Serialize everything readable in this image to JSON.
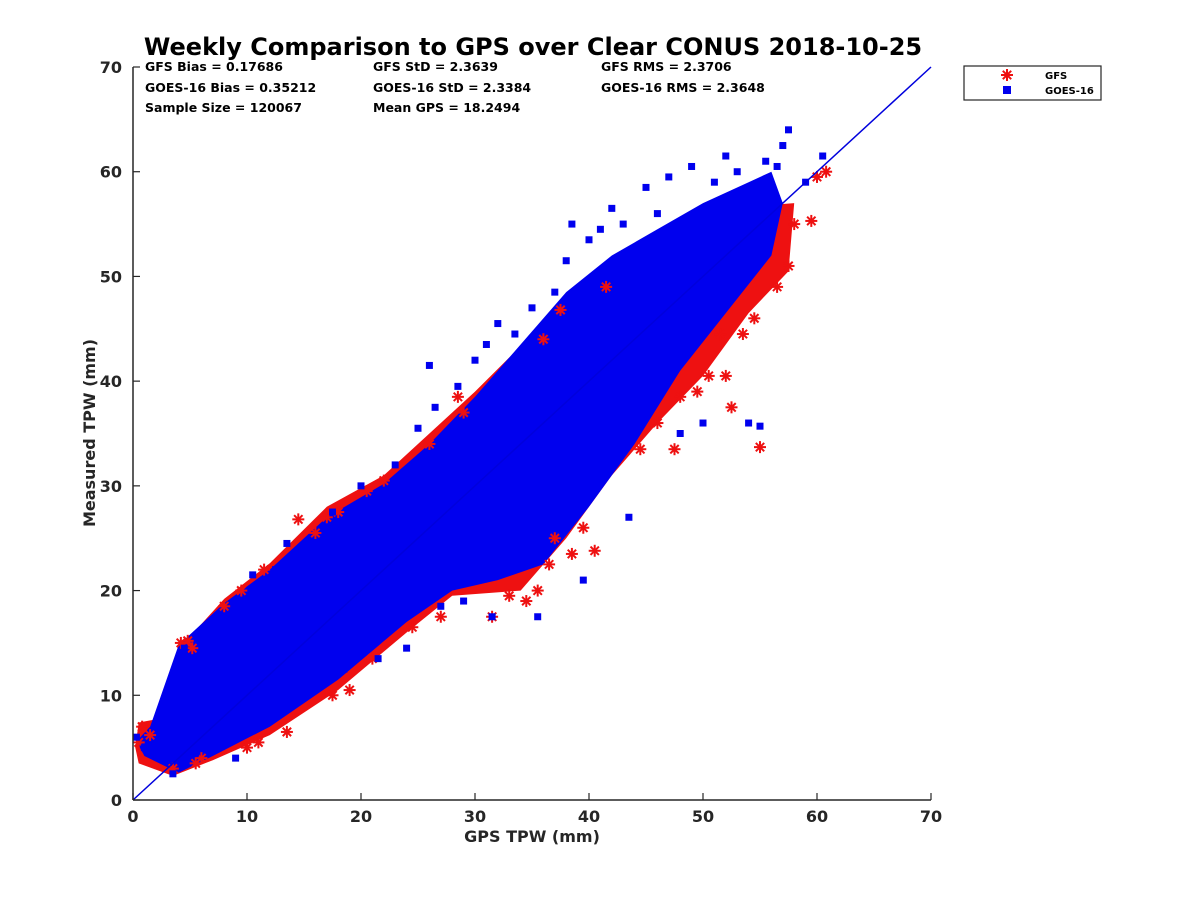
{
  "chart_data": {
    "type": "scatter",
    "title": "Weekly Comparison to GPS over Clear CONUS 2018-10-25",
    "xlabel": "GPS TPW (mm)",
    "ylabel": "Measured TPW (mm)",
    "xlim": [
      0,
      70
    ],
    "ylim": [
      0,
      70
    ],
    "xticks": [
      "0",
      "10",
      "20",
      "30",
      "40",
      "50",
      "60",
      "70"
    ],
    "yticks": [
      "0",
      "10",
      "20",
      "30",
      "40",
      "50",
      "60",
      "70"
    ],
    "grid": false,
    "legend_position": "outside top-right",
    "reference_line": {
      "x": [
        0,
        70
      ],
      "y": [
        0,
        70
      ],
      "color": "#0000dd"
    },
    "stats": {
      "gfs_bias": "GFS Bias = 0.17686",
      "gfs_std": "GFS StD = 2.3639",
      "gfs_rms": "GFS RMS = 2.3706",
      "goes_bias": "GOES-16 Bias = 0.35212",
      "goes_std": "GOES-16 StD = 2.3384",
      "goes_rms": "GOES-16 RMS = 2.3648",
      "sample_size": "Sample Size = 120067",
      "mean_gps": "Mean GPS = 18.2494"
    },
    "series": [
      {
        "name": "GFS",
        "marker": "asterisk",
        "color": "#ee1111",
        "points": [
          [
            0.5,
            5.5
          ],
          [
            0.8,
            7.0
          ],
          [
            1.5,
            6.2
          ],
          [
            3.5,
            3.0
          ],
          [
            4.2,
            15.0
          ],
          [
            4.8,
            15.2
          ],
          [
            5.2,
            14.5
          ],
          [
            5.5,
            3.5
          ],
          [
            6.0,
            4.0
          ],
          [
            8.0,
            18.5
          ],
          [
            9.5,
            20.0
          ],
          [
            10.0,
            5.0
          ],
          [
            11.0,
            5.5
          ],
          [
            11.5,
            22.0
          ],
          [
            13.5,
            6.5
          ],
          [
            14.5,
            26.8
          ],
          [
            16.0,
            25.5
          ],
          [
            17.0,
            27.0
          ],
          [
            18.0,
            27.5
          ],
          [
            17.5,
            10.0
          ],
          [
            19.0,
            10.5
          ],
          [
            20.5,
            29.5
          ],
          [
            21.0,
            13.5
          ],
          [
            22.0,
            30.5
          ],
          [
            24.5,
            16.5
          ],
          [
            26.0,
            34.0
          ],
          [
            27.0,
            17.5
          ],
          [
            28.5,
            38.5
          ],
          [
            29.0,
            37.0
          ],
          [
            31.5,
            17.5
          ],
          [
            33.0,
            19.5
          ],
          [
            34.5,
            19.0
          ],
          [
            35.5,
            20.0
          ],
          [
            36.0,
            44.0
          ],
          [
            36.5,
            22.5
          ],
          [
            37.0,
            25.0
          ],
          [
            37.5,
            46.8
          ],
          [
            38.5,
            23.5
          ],
          [
            39.5,
            26.0
          ],
          [
            40.5,
            23.8
          ],
          [
            41.5,
            49.0
          ],
          [
            44.5,
            33.5
          ],
          [
            46.0,
            36.0
          ],
          [
            47.5,
            33.5
          ],
          [
            48.0,
            38.5
          ],
          [
            49.5,
            39.0
          ],
          [
            50.5,
            40.5
          ],
          [
            51.5,
            44.5
          ],
          [
            52.5,
            37.5
          ],
          [
            52.0,
            40.5
          ],
          [
            53.5,
            44.5
          ],
          [
            54.5,
            46.0
          ],
          [
            55.0,
            33.7
          ],
          [
            56.5,
            49.0
          ],
          [
            57.5,
            51.0
          ],
          [
            58.0,
            55.0
          ],
          [
            59.5,
            55.3
          ],
          [
            60.0,
            59.5
          ],
          [
            60.8,
            60.0
          ]
        ]
      },
      {
        "name": "GOES-16",
        "marker": "square",
        "color": "#0000ee",
        "points": [
          [
            0.3,
            6.0
          ],
          [
            1.0,
            5.0
          ],
          [
            3.5,
            2.5
          ],
          [
            4.5,
            14.5
          ],
          [
            5.5,
            4.5
          ],
          [
            6.5,
            15.5
          ],
          [
            8.0,
            17.5
          ],
          [
            9.0,
            4.0
          ],
          [
            10.5,
            21.5
          ],
          [
            12.5,
            22.0
          ],
          [
            13.5,
            24.5
          ],
          [
            15.0,
            24.0
          ],
          [
            17.5,
            27.5
          ],
          [
            18.5,
            12.5
          ],
          [
            20.0,
            30.0
          ],
          [
            21.5,
            13.5
          ],
          [
            23.0,
            32.0
          ],
          [
            24.0,
            14.5
          ],
          [
            25.0,
            35.5
          ],
          [
            26.0,
            41.5
          ],
          [
            26.5,
            37.5
          ],
          [
            27.0,
            18.5
          ],
          [
            28.5,
            39.5
          ],
          [
            29.0,
            19.0
          ],
          [
            30.0,
            42.0
          ],
          [
            31.0,
            43.5
          ],
          [
            31.5,
            17.5
          ],
          [
            32.0,
            45.5
          ],
          [
            33.5,
            44.5
          ],
          [
            35.0,
            47.0
          ],
          [
            35.5,
            17.5
          ],
          [
            37.0,
            48.5
          ],
          [
            38.0,
            51.5
          ],
          [
            38.5,
            55.0
          ],
          [
            39.5,
            21.0
          ],
          [
            40.0,
            53.5
          ],
          [
            41.0,
            54.5
          ],
          [
            42.0,
            56.5
          ],
          [
            43.0,
            55.0
          ],
          [
            43.5,
            27.0
          ],
          [
            45.0,
            58.5
          ],
          [
            46.0,
            56.0
          ],
          [
            47.0,
            59.5
          ],
          [
            48.0,
            35.0
          ],
          [
            49.0,
            60.5
          ],
          [
            50.0,
            36.0
          ],
          [
            51.0,
            59.0
          ],
          [
            52.0,
            61.5
          ],
          [
            53.0,
            60.0
          ],
          [
            54.0,
            36.0
          ],
          [
            55.0,
            35.7
          ],
          [
            55.5,
            61.0
          ],
          [
            56.5,
            60.5
          ],
          [
            57.0,
            62.5
          ],
          [
            57.5,
            64.0
          ],
          [
            59.0,
            59.0
          ],
          [
            60.5,
            61.5
          ]
        ]
      }
    ]
  }
}
